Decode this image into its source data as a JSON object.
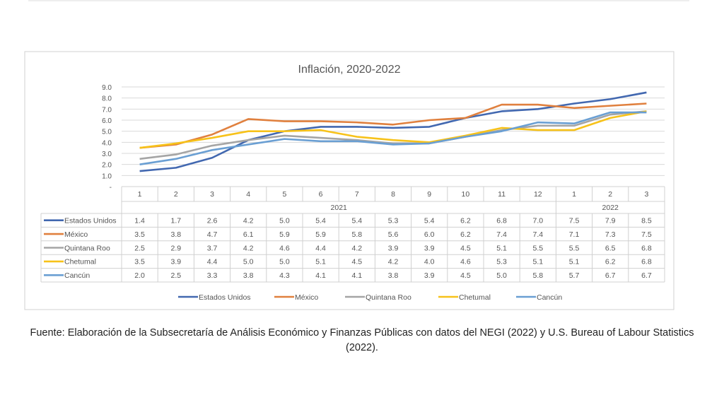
{
  "chart_data": {
    "type": "line",
    "title": "Inflación, 2020-2022",
    "x": [
      "1",
      "2",
      "3",
      "4",
      "5",
      "6",
      "7",
      "8",
      "9",
      "10",
      "11",
      "12",
      "1",
      "2",
      "3"
    ],
    "year_groups": [
      {
        "label": "2021",
        "span": 12
      },
      {
        "label": "2022",
        "span": 3
      }
    ],
    "ylim": [
      0,
      9
    ],
    "yticks": [
      "-",
      "1.0",
      "2.0",
      "3.0",
      "4.0",
      "5.0",
      "6.0",
      "7.0",
      "8.0",
      "9.0"
    ],
    "grid": true,
    "legend_position": "bottom",
    "data_table": true,
    "series": [
      {
        "name": "Estados Unidos",
        "color": "#4268b0",
        "values": [
          1.4,
          1.7,
          2.6,
          4.2,
          5.0,
          5.4,
          5.4,
          5.3,
          5.4,
          6.2,
          6.8,
          7.0,
          7.5,
          7.9,
          8.5
        ]
      },
      {
        "name": "México",
        "color": "#e0803e",
        "values": [
          3.5,
          3.8,
          4.7,
          6.1,
          5.9,
          5.9,
          5.8,
          5.6,
          6.0,
          6.2,
          7.4,
          7.4,
          7.1,
          7.3,
          7.5
        ]
      },
      {
        "name": "Quintana Roo",
        "color": "#a5a5a5",
        "values": [
          2.5,
          2.9,
          3.7,
          4.2,
          4.6,
          4.4,
          4.2,
          3.9,
          3.9,
          4.5,
          5.1,
          5.5,
          5.5,
          6.5,
          6.8
        ]
      },
      {
        "name": "Chetumal",
        "color": "#f7c21a",
        "values": [
          3.5,
          3.9,
          4.4,
          5.0,
          5.0,
          5.1,
          4.5,
          4.2,
          4.0,
          4.6,
          5.3,
          5.1,
          5.1,
          6.2,
          6.8
        ]
      },
      {
        "name": "Cancún",
        "color": "#6a9fd3",
        "values": [
          2.0,
          2.5,
          3.3,
          3.8,
          4.3,
          4.1,
          4.1,
          3.8,
          3.9,
          4.5,
          5.0,
          5.8,
          5.7,
          6.7,
          6.7
        ]
      }
    ]
  },
  "source": "Fuente: Elaboración de la Subsecretaría de Análisis Económico y Finanzas Públicas con datos del NEGI (2022) y U.S. Bureau of Labour Statistics (2022)."
}
